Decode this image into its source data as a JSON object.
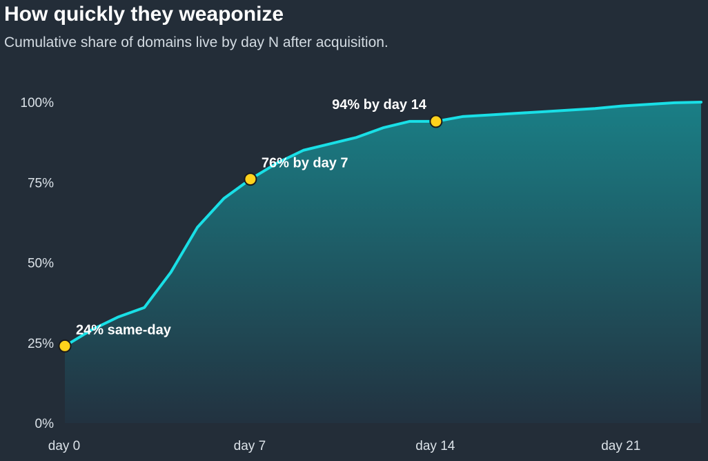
{
  "colors": {
    "background": "#232d38",
    "line": "#19dfe6",
    "area_top": "#1a7f86",
    "area_bottom": "#223240",
    "marker_fill": "#ffd21c",
    "marker_stroke": "#1b1b1b"
  },
  "chart_data": {
    "type": "area",
    "title": "How quickly they weaponize",
    "subtitle": "Cumulative share of domains live by day N after acquisition.",
    "xlabel": "",
    "ylabel": "",
    "xlim": [
      0,
      24
    ],
    "ylim": [
      0,
      100
    ],
    "x_ticks": [
      {
        "value": 0,
        "label": "day 0"
      },
      {
        "value": 7,
        "label": "day 7"
      },
      {
        "value": 14,
        "label": "day 14"
      },
      {
        "value": 21,
        "label": "day 21"
      }
    ],
    "y_ticks": [
      {
        "value": 0,
        "label": "0%"
      },
      {
        "value": 25,
        "label": "25%"
      },
      {
        "value": 50,
        "label": "50%"
      },
      {
        "value": 75,
        "label": "75%"
      },
      {
        "value": 100,
        "label": "100%"
      }
    ],
    "grid": false,
    "x": [
      0,
      1,
      2,
      3,
      4,
      5,
      6,
      7,
      8,
      9,
      10,
      11,
      12,
      13,
      14,
      15,
      16,
      17,
      18,
      19,
      20,
      21,
      22,
      23,
      24
    ],
    "values": [
      24,
      29,
      33,
      36,
      47,
      61,
      70,
      76,
      81,
      85,
      87,
      89,
      92,
      94,
      94,
      95.5,
      96,
      96.5,
      97,
      97.5,
      98,
      98.8,
      99.3,
      99.8,
      100
    ],
    "annotations": [
      {
        "x": 0,
        "y": 24,
        "label": "24% same-day"
      },
      {
        "x": 7,
        "y": 76,
        "label": "76% by day 7"
      },
      {
        "x": 14,
        "y": 94,
        "label": "94% by day 14"
      }
    ]
  }
}
